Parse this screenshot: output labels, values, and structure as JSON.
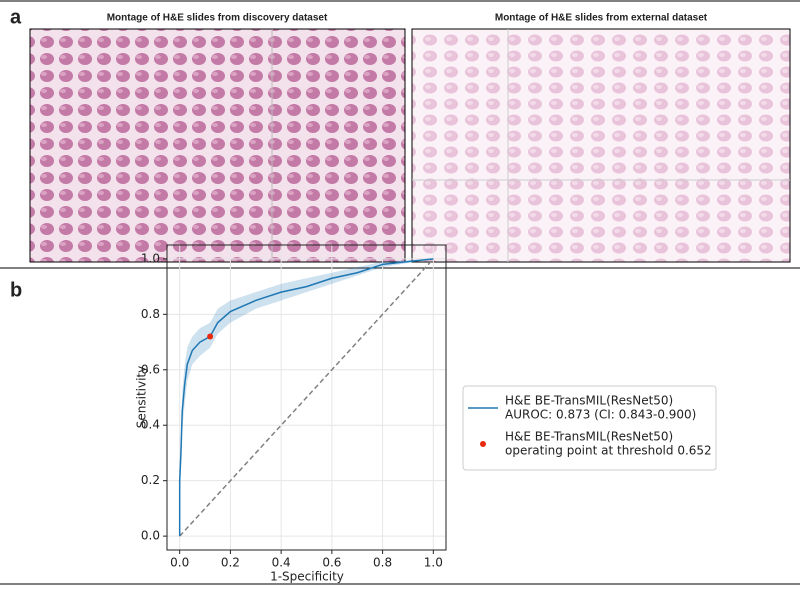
{
  "panel_a": {
    "label": "a",
    "left_title": "Montage of H&E slides from discovery dataset",
    "right_title": "Montage of H&E slides from external dataset"
  },
  "panel_b": {
    "label": "b"
  },
  "chart_data": {
    "type": "line",
    "xlabel": "1-Specificity",
    "ylabel": "Sensitivity",
    "xlim": [
      -0.05,
      1.05
    ],
    "ylim": [
      -0.05,
      1.05
    ],
    "xticks": [
      {
        "value": 0,
        "label": "0.0"
      },
      {
        "value": 0.2,
        "label": "0.2"
      },
      {
        "value": 0.4,
        "label": "0.4"
      },
      {
        "value": 0.6,
        "label": "0.6"
      },
      {
        "value": 0.8,
        "label": "0.8"
      },
      {
        "value": 1,
        "label": "1.0"
      }
    ],
    "yticks": [
      {
        "value": 0,
        "label": "0.0"
      },
      {
        "value": 0.2,
        "label": "0.2"
      },
      {
        "value": 0.4,
        "label": "0.4"
      },
      {
        "value": 0.6,
        "label": "0.6"
      },
      {
        "value": 0.8,
        "label": "0.8"
      },
      {
        "value": 1,
        "label": "1.0"
      }
    ],
    "grid": true,
    "series": [
      {
        "name": [
          "H&E BE-TransMIL(ResNet50)",
          "AUROC: 0.873 (CI: 0.843-0.900)"
        ],
        "color": "#1f77b4",
        "x": [
          0,
          0,
          0.005,
          0.01,
          0.02,
          0.03,
          0.05,
          0.08,
          0.12,
          0.15,
          0.2,
          0.3,
          0.4,
          0.5,
          0.6,
          0.7,
          0.8,
          0.9,
          1
        ],
        "values": [
          0,
          0.2,
          0.3,
          0.45,
          0.55,
          0.62,
          0.67,
          0.7,
          0.72,
          0.77,
          0.81,
          0.85,
          0.88,
          0.9,
          0.93,
          0.95,
          0.98,
          0.99,
          1
        ],
        "lower": [
          0,
          0.14,
          0.24,
          0.38,
          0.48,
          0.56,
          0.62,
          0.65,
          0.68,
          0.73,
          0.77,
          0.82,
          0.85,
          0.88,
          0.91,
          0.94,
          0.97,
          0.985,
          1
        ],
        "upper": [
          0,
          0.27,
          0.37,
          0.52,
          0.62,
          0.68,
          0.72,
          0.75,
          0.77,
          0.82,
          0.85,
          0.88,
          0.91,
          0.93,
          0.95,
          0.97,
          0.99,
          0.995,
          1
        ]
      }
    ],
    "operating_point": {
      "name": [
        "H&E BE-TransMIL(ResNet50)",
        "operating point at threshold 0.652"
      ],
      "color": "#e8290b",
      "x": [
        0.12
      ],
      "values": [
        0.72
      ]
    },
    "diagonal": {
      "color": "#808080",
      "x": [
        0,
        1
      ],
      "values": [
        0,
        1
      ]
    }
  }
}
